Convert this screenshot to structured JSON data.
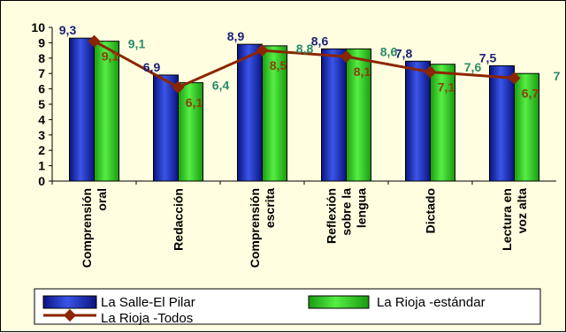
{
  "chart_data": {
    "type": "bar",
    "categories": [
      [
        "Comprensión",
        "oral"
      ],
      [
        "Redacción"
      ],
      [
        "Comprensión",
        "escrita"
      ],
      [
        "Reflexión",
        "sobre la",
        "lengua"
      ],
      [
        "Dictado"
      ],
      [
        "Lectura en",
        "voz alta"
      ]
    ],
    "yticks": [
      "0",
      "1",
      "2",
      "3",
      "4",
      "5",
      "6",
      "7",
      "8",
      "9",
      "10"
    ],
    "ylim": [
      0,
      10
    ],
    "grid": false,
    "legend_position": "bottom",
    "series": [
      {
        "name": "La Salle-El Pilar",
        "kind": "bar",
        "color": "#1f2fb0",
        "values": [
          9.3,
          6.9,
          8.9,
          8.6,
          7.8,
          7.5
        ],
        "labels": [
          "9,3",
          "6,9",
          "8,9",
          "8,6",
          "7,8",
          "7,5"
        ]
      },
      {
        "name": "La Rioja -estándar",
        "kind": "bar",
        "color": "#33dd22",
        "values": [
          9.1,
          6.4,
          8.8,
          8.6,
          7.6,
          7.0
        ],
        "labels": [
          "9,1",
          "6,4",
          "8,8",
          "8,6",
          "7,6",
          "7"
        ]
      },
      {
        "name": "La Rioja -Todos",
        "kind": "line",
        "color": "#8b2500",
        "values": [
          9.1,
          6.1,
          8.5,
          8.1,
          7.1,
          6.7
        ],
        "labels": [
          "9,1",
          "6,1",
          "8,5",
          "8,1",
          "7,1",
          "6,7"
        ]
      }
    ]
  }
}
